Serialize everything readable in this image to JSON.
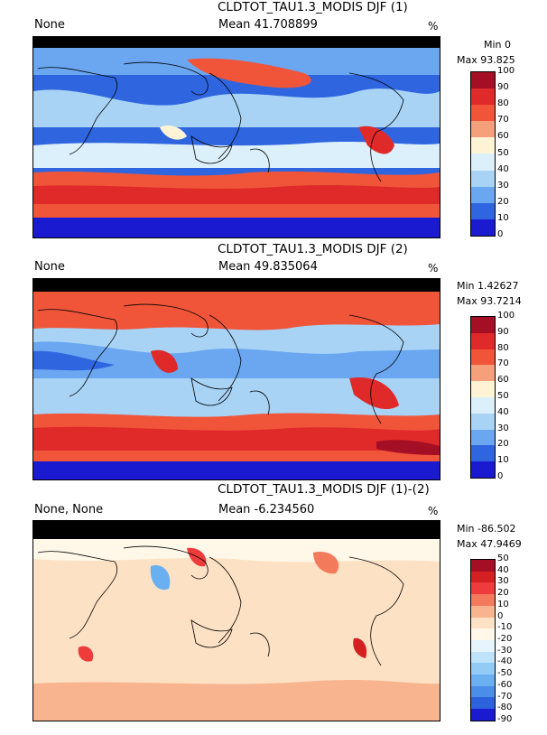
{
  "panels": [
    {
      "title": "CLDTOT_TAU1.3_MODIS DJF (1)",
      "left_label": "None",
      "mean_label": "Mean 41.708899",
      "unit": "%",
      "min_label": "Min 0",
      "max_label": "Max 93.825",
      "colorbar_labels": [
        "100",
        "90",
        "80",
        "70",
        "60",
        "50",
        "40",
        "30",
        "20",
        "10",
        "0"
      ],
      "colorbar_colors": [
        "#a50f25",
        "#e02a2a",
        "#f0553a",
        "#f5a07a",
        "#fff3d6",
        "#dcf0fb",
        "#a8d3f5",
        "#6aa7f0",
        "#2f66e0",
        "#1a1ad0"
      ]
    },
    {
      "title": "CLDTOT_TAU1.3_MODIS DJF (2)",
      "left_label": "None",
      "mean_label": "Mean 49.835064",
      "unit": "%",
      "min_label": "Min 1.42627",
      "max_label": "Max 93.7214",
      "colorbar_labels": [
        "100",
        "90",
        "80",
        "70",
        "60",
        "50",
        "40",
        "30",
        "20",
        "10",
        "0"
      ],
      "colorbar_colors": [
        "#a50f25",
        "#e02a2a",
        "#f0553a",
        "#f5a07a",
        "#fff3d6",
        "#dcf0fb",
        "#a8d3f5",
        "#6aa7f0",
        "#2f66e0",
        "#1a1ad0"
      ]
    },
    {
      "title": "CLDTOT_TAU1.3_MODIS DJF (1)-(2)",
      "left_label": "None, None",
      "mean_label": "Mean -6.234560",
      "unit": "%",
      "min_label": "Min -86.502",
      "max_label": "Max 47.9469",
      "colorbar_labels": [
        "50",
        "40",
        "30",
        "20",
        "10",
        "0",
        "-10",
        "-20",
        "-30",
        "-40",
        "-50",
        "-60",
        "-70",
        "-80",
        "-90"
      ],
      "colorbar_colors": [
        "#a50f25",
        "#d42020",
        "#ee3b3b",
        "#f37a5a",
        "#f8b48f",
        "#fde1c4",
        "#fff8e8",
        "#e6f4fd",
        "#bfe3fa",
        "#92ccf6",
        "#6ab0f0",
        "#4a8ee8",
        "#2c62dc",
        "#1a1ad0"
      ]
    }
  ]
}
